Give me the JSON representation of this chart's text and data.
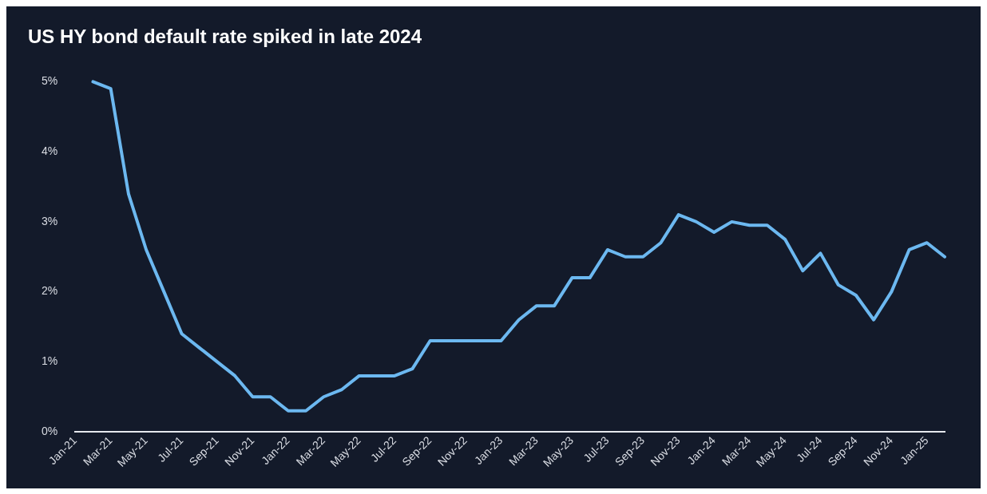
{
  "chart_data": {
    "type": "line",
    "title": "US HY bond default rate spiked in late 2024",
    "x": [
      "2021-02",
      "2021-03",
      "2021-04",
      "2021-05",
      "2021-06",
      "2021-07",
      "2021-08",
      "2021-09",
      "2021-10",
      "2021-11",
      "2021-12",
      "2022-01",
      "2022-02",
      "2022-03",
      "2022-04",
      "2022-05",
      "2022-06",
      "2022-07",
      "2022-08",
      "2022-09",
      "2022-10",
      "2022-11",
      "2022-12",
      "2023-01",
      "2023-02",
      "2023-03",
      "2023-04",
      "2023-05",
      "2023-06",
      "2023-07",
      "2023-08",
      "2023-09",
      "2023-10",
      "2023-11",
      "2023-12",
      "2024-01",
      "2024-02",
      "2024-03",
      "2024-04",
      "2024-05",
      "2024-06",
      "2024-07",
      "2024-08",
      "2024-09",
      "2024-10",
      "2024-11",
      "2024-12",
      "2025-01",
      "2025-02"
    ],
    "series": [
      {
        "color": "#6cb8f0",
        "values": [
          5.0,
          4.9,
          3.4,
          2.6,
          2.0,
          1.4,
          1.2,
          1.0,
          0.8,
          0.5,
          0.5,
          0.3,
          0.3,
          0.5,
          0.6,
          0.8,
          0.8,
          0.8,
          0.9,
          1.3,
          1.3,
          1.3,
          1.3,
          1.3,
          1.6,
          1.8,
          1.8,
          2.2,
          2.2,
          2.6,
          2.5,
          2.5,
          2.7,
          3.1,
          3.0,
          2.85,
          3.0,
          2.95,
          2.95,
          2.75,
          2.3,
          2.55,
          2.1,
          1.95,
          1.6,
          2.0,
          2.6,
          2.7,
          2.5
        ]
      }
    ],
    "xlim": [
      "2021-01",
      "2025-02"
    ],
    "xticks": [
      {
        "value": "2021-01",
        "label": "Jan-21"
      },
      {
        "value": "2021-03",
        "label": "Mar-21"
      },
      {
        "value": "2021-05",
        "label": "May-21"
      },
      {
        "value": "2021-07",
        "label": "Jul-21"
      },
      {
        "value": "2021-09",
        "label": "Sep-21"
      },
      {
        "value": "2021-11",
        "label": "Nov-21"
      },
      {
        "value": "2022-01",
        "label": "Jan-22"
      },
      {
        "value": "2022-03",
        "label": "Mar-22"
      },
      {
        "value": "2022-05",
        "label": "May-22"
      },
      {
        "value": "2022-07",
        "label": "Jul-22"
      },
      {
        "value": "2022-09",
        "label": "Sep-22"
      },
      {
        "value": "2022-11",
        "label": "Nov-22"
      },
      {
        "value": "2023-01",
        "label": "Jan-23"
      },
      {
        "value": "2023-03",
        "label": "Mar-23"
      },
      {
        "value": "2023-05",
        "label": "May-23"
      },
      {
        "value": "2023-07",
        "label": "Jul-23"
      },
      {
        "value": "2023-09",
        "label": "Sep-23"
      },
      {
        "value": "2023-11",
        "label": "Nov-23"
      },
      {
        "value": "2024-01",
        "label": "Jan-24"
      },
      {
        "value": "2024-03",
        "label": "Mar-24"
      },
      {
        "value": "2024-05",
        "label": "May-24"
      },
      {
        "value": "2024-07",
        "label": "Jul-24"
      },
      {
        "value": "2024-09",
        "label": "Sep-24"
      },
      {
        "value": "2024-11",
        "label": "Nov-24"
      },
      {
        "value": "2025-01",
        "label": "Jan-25"
      }
    ],
    "ylim": [
      0,
      5
    ],
    "yticks": [
      {
        "value": 0,
        "label": "0%"
      },
      {
        "value": 1,
        "label": "1%"
      },
      {
        "value": 2,
        "label": "2%"
      },
      {
        "value": 3,
        "label": "3%"
      },
      {
        "value": 4,
        "label": "4%"
      },
      {
        "value": 5,
        "label": "5%"
      }
    ],
    "grid": false,
    "legend": false,
    "marker": "none",
    "line_style": "solid"
  }
}
